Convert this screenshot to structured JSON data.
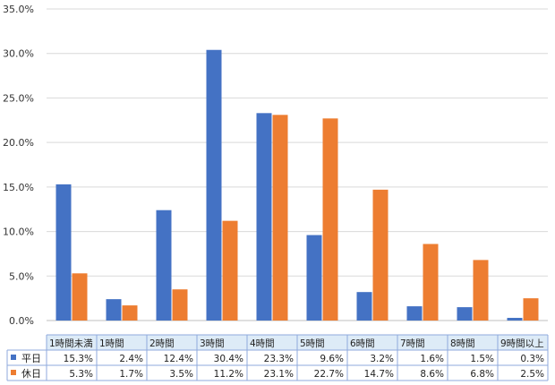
{
  "chart_data": {
    "type": "bar",
    "categories": [
      "1時間未満",
      "1時間",
      "2時間",
      "3時間",
      "4時間",
      "5時間",
      "6時間",
      "7時間",
      "8時間",
      "9時間以上"
    ],
    "series": [
      {
        "name": "平日",
        "values": [
          15.3,
          2.4,
          12.4,
          30.4,
          23.3,
          9.6,
          3.2,
          1.6,
          1.5,
          0.3
        ],
        "labels": [
          "15.3%",
          "2.4%",
          "12.4%",
          "30.4%",
          "23.3%",
          "9.6%",
          "3.2%",
          "1.6%",
          "1.5%",
          "0.3%"
        ],
        "color": "#4472C4"
      },
      {
        "name": "休日",
        "values": [
          5.3,
          1.7,
          3.5,
          11.2,
          23.1,
          22.7,
          14.7,
          8.6,
          6.8,
          2.5
        ],
        "labels": [
          "5.3%",
          "1.7%",
          "3.5%",
          "11.2%",
          "23.1%",
          "22.7%",
          "14.7%",
          "8.6%",
          "6.8%",
          "2.5%"
        ],
        "color": "#ED7D31"
      }
    ],
    "ylim": [
      0,
      35
    ],
    "yticks": [
      "0.0%",
      "5.0%",
      "10.0%",
      "15.0%",
      "20.0%",
      "25.0%",
      "30.0%",
      "35.0%"
    ],
    "grid": true,
    "legend": "data table below chart",
    "title": "",
    "xlabel": "",
    "ylabel": ""
  }
}
